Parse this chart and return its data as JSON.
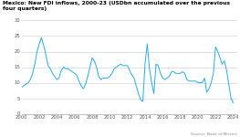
{
  "title": "Mexico: New FDI inflows, 2000-23 (USDbn accumulated over the previous four quarters)",
  "source": "Source: Bank of Mexico",
  "line_color": "#29ABE2",
  "background_color": "#ffffff",
  "ylim": [
    0,
    30
  ],
  "yticks": [
    0,
    5,
    10,
    15,
    20,
    25,
    30
  ],
  "xlim": [
    2000,
    2024.5
  ],
  "xticks": [
    2000,
    2002,
    2004,
    2006,
    2008,
    2010,
    2012,
    2014,
    2016,
    2018,
    2020,
    2022,
    2024
  ],
  "x": [
    2000.0,
    2000.25,
    2000.5,
    2000.75,
    2001.0,
    2001.25,
    2001.5,
    2001.75,
    2002.0,
    2002.25,
    2002.5,
    2002.75,
    2003.0,
    2003.25,
    2003.5,
    2003.75,
    2004.0,
    2004.25,
    2004.5,
    2004.75,
    2005.0,
    2005.25,
    2005.5,
    2005.75,
    2006.0,
    2006.25,
    2006.5,
    2006.75,
    2007.0,
    2007.25,
    2007.5,
    2007.75,
    2008.0,
    2008.25,
    2008.5,
    2008.75,
    2009.0,
    2009.25,
    2009.5,
    2009.75,
    2010.0,
    2010.25,
    2010.5,
    2010.75,
    2011.0,
    2011.25,
    2011.5,
    2011.75,
    2012.0,
    2012.25,
    2012.5,
    2012.75,
    2013.0,
    2013.25,
    2013.5,
    2013.75,
    2014.0,
    2014.25,
    2014.5,
    2014.75,
    2015.0,
    2015.25,
    2015.5,
    2015.75,
    2016.0,
    2016.25,
    2016.5,
    2016.75,
    2017.0,
    2017.25,
    2017.5,
    2017.75,
    2018.0,
    2018.25,
    2018.5,
    2018.75,
    2019.0,
    2019.25,
    2019.5,
    2019.75,
    2020.0,
    2020.25,
    2020.5,
    2020.75,
    2021.0,
    2021.25,
    2021.5,
    2021.75,
    2022.0,
    2022.25,
    2022.5,
    2022.75,
    2023.0,
    2023.25,
    2023.5,
    2023.75,
    2024.0
  ],
  "y": [
    8.5,
    9.0,
    9.5,
    10.0,
    11.0,
    13.0,
    16.0,
    20.0,
    22.5,
    24.5,
    22.0,
    19.0,
    15.5,
    14.5,
    13.0,
    12.0,
    11.0,
    11.5,
    14.0,
    15.0,
    14.5,
    14.5,
    14.0,
    13.5,
    13.0,
    12.5,
    10.5,
    9.0,
    8.0,
    9.5,
    12.0,
    15.0,
    18.0,
    17.0,
    15.0,
    12.0,
    11.0,
    11.5,
    11.5,
    11.5,
    12.0,
    13.0,
    14.5,
    15.0,
    15.5,
    16.0,
    15.5,
    15.5,
    15.5,
    14.0,
    12.5,
    11.5,
    9.0,
    6.5,
    4.5,
    4.0,
    16.0,
    22.5,
    14.5,
    10.0,
    6.5,
    16.0,
    15.5,
    13.0,
    11.5,
    11.0,
    11.5,
    12.0,
    13.5,
    13.5,
    13.0,
    13.0,
    13.0,
    13.5,
    13.0,
    11.0,
    10.5,
    10.5,
    10.5,
    10.5,
    10.0,
    10.0,
    10.0,
    11.5,
    7.0,
    8.0,
    10.0,
    13.0,
    21.5,
    20.0,
    18.0,
    16.0,
    17.0,
    14.0,
    9.5,
    5.0,
    3.5
  ]
}
